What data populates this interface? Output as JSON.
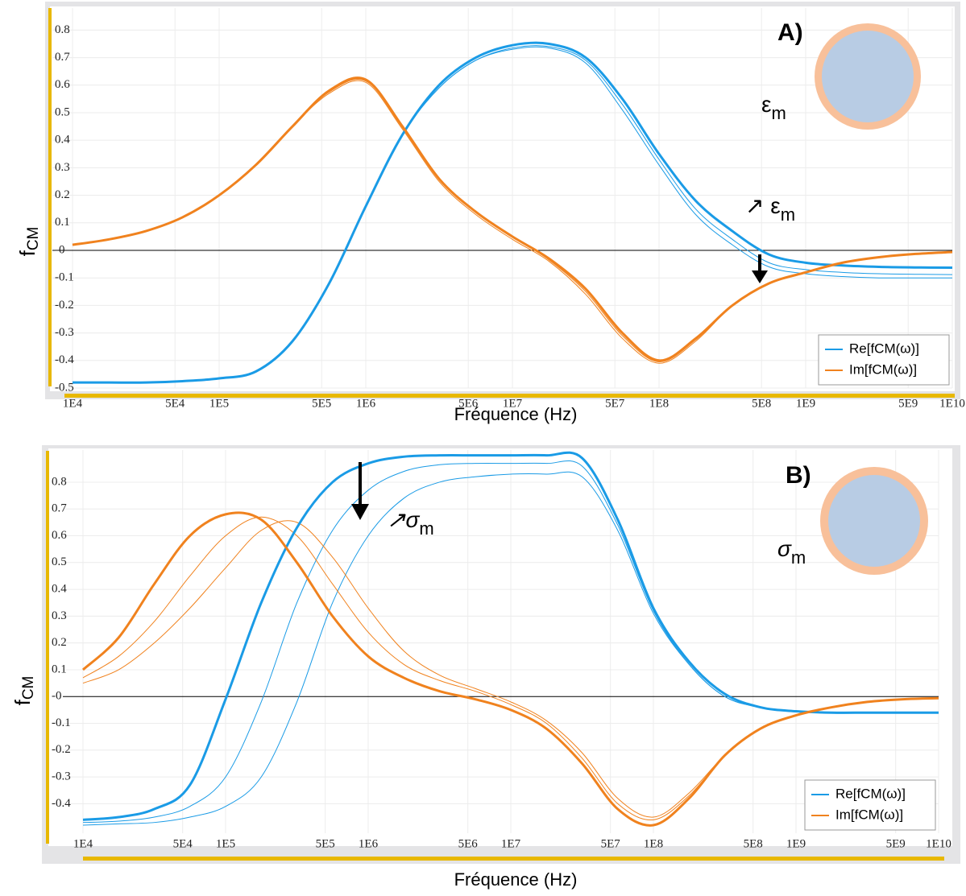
{
  "chart_data": [
    {
      "type": "line",
      "log_x": true,
      "grid": true,
      "legend": "lower right",
      "ylabel": {
        "text": "f",
        "sub": "CM"
      },
      "xlabel": "Fréquence (Hz)",
      "annotations": [
        {
          "text": "A)"
        },
        {
          "text": "ε",
          "sub": "m"
        },
        {
          "text": "↗ ε",
          "sub": "m"
        }
      ],
      "xlim": [
        10000,
        10000000000
      ],
      "ylim": [
        -0.5,
        0.88
      ],
      "xticks": [
        {
          "value": 10000,
          "label": "1E4"
        },
        {
          "value": 50000,
          "label": "5E4"
        },
        {
          "value": 100000,
          "label": "1E5"
        },
        {
          "value": 500000,
          "label": "5E5"
        },
        {
          "value": 1000000,
          "label": "1E6"
        },
        {
          "value": 5000000,
          "label": "5E6"
        },
        {
          "value": 10000000,
          "label": "1E7"
        },
        {
          "value": 50000000,
          "label": "5E7"
        },
        {
          "value": 100000000,
          "label": "1E8"
        },
        {
          "value": 500000000,
          "label": "5E8"
        },
        {
          "value": 1000000000,
          "label": "1E9"
        },
        {
          "value": 5000000000,
          "label": "5E9"
        },
        {
          "value": 10000000000,
          "label": "1E10"
        }
      ],
      "yticks": [
        -0.5,
        -0.4,
        -0.3,
        -0.2,
        -0.1,
        {
          "value": 0,
          "label": "-0"
        },
        0.1,
        0.2,
        0.3,
        0.4,
        0.5,
        0.6,
        0.7,
        0.8
      ],
      "x": [
        10000,
        17783,
        31623,
        56234,
        100000,
        177828,
        316228,
        562341,
        1000000,
        1778279,
        3162278,
        5623413,
        10000000,
        17782794,
        31622777,
        56234133,
        100000000,
        177827941,
        316227766,
        562341325,
        1000000000,
        1778279410,
        3162277660,
        5623413252,
        10000000000
      ],
      "series": [
        {
          "name": "Re[fCM(ω)]",
          "color": "#1a9be6",
          "width": 3,
          "values": [
            -0.48,
            -0.48,
            -0.48,
            -0.475,
            -0.465,
            -0.44,
            -0.33,
            -0.12,
            0.16,
            0.42,
            0.6,
            0.7,
            0.745,
            0.75,
            0.7,
            0.55,
            0.35,
            0.18,
            0.07,
            -0.015,
            -0.045,
            -0.055,
            -0.06,
            -0.062,
            -0.063
          ]
        },
        {
          "color": "#1a9be6",
          "width": 1,
          "values": [
            -0.48,
            -0.48,
            -0.48,
            -0.475,
            -0.465,
            -0.44,
            -0.33,
            -0.12,
            0.16,
            0.42,
            0.59,
            0.69,
            0.735,
            0.74,
            0.69,
            0.53,
            0.33,
            0.15,
            0.04,
            -0.045,
            -0.07,
            -0.08,
            -0.085,
            -0.087,
            -0.088
          ]
        },
        {
          "color": "#1a9be6",
          "width": 1,
          "values": [
            -0.48,
            -0.48,
            -0.48,
            -0.475,
            -0.465,
            -0.44,
            -0.33,
            -0.12,
            0.16,
            0.42,
            0.59,
            0.69,
            0.73,
            0.735,
            0.68,
            0.51,
            0.31,
            0.13,
            0.02,
            -0.06,
            -0.085,
            -0.095,
            -0.1,
            -0.1,
            -0.1
          ]
        },
        {
          "name": "Im[fCM(ω)]",
          "color": "#f0821e",
          "width": 3,
          "values": [
            0.02,
            0.04,
            0.07,
            0.12,
            0.2,
            0.31,
            0.45,
            0.58,
            0.62,
            0.45,
            0.26,
            0.14,
            0.05,
            -0.03,
            -0.14,
            -0.3,
            -0.4,
            -0.32,
            -0.2,
            -0.12,
            -0.08,
            -0.045,
            -0.025,
            -0.013,
            -0.006
          ]
        },
        {
          "color": "#f0821e",
          "width": 1,
          "values": [
            0.02,
            0.04,
            0.07,
            0.12,
            0.2,
            0.31,
            0.45,
            0.575,
            0.615,
            0.45,
            0.26,
            0.14,
            0.05,
            -0.035,
            -0.15,
            -0.31,
            -0.405,
            -0.325,
            -0.2,
            -0.12,
            -0.08,
            -0.045,
            -0.025,
            -0.013,
            -0.006
          ]
        },
        {
          "color": "#f0821e",
          "width": 1,
          "values": [
            0.02,
            0.04,
            0.07,
            0.12,
            0.2,
            0.31,
            0.45,
            0.57,
            0.61,
            0.44,
            0.25,
            0.13,
            0.04,
            -0.04,
            -0.16,
            -0.32,
            -0.41,
            -0.33,
            -0.2,
            -0.12,
            -0.08,
            -0.045,
            -0.025,
            -0.013,
            -0.006
          ]
        }
      ]
    },
    {
      "type": "line",
      "log_x": true,
      "grid": true,
      "legend": "lower right",
      "ylabel": {
        "text": "f",
        "sub": "CM"
      },
      "xlabel": "Fréquence (Hz)",
      "annotations": [
        {
          "text": "B)"
        },
        {
          "text": "σ",
          "sub": "m"
        },
        {
          "text": "↗σ",
          "sub": "m"
        }
      ],
      "xlim": [
        10000,
        10000000000
      ],
      "ylim": [
        -0.51,
        0.92
      ],
      "xticks": [
        {
          "value": 10000,
          "label": "1E4"
        },
        {
          "value": 50000,
          "label": "5E4"
        },
        {
          "value": 100000,
          "label": "1E5"
        },
        {
          "value": 500000,
          "label": "5E5"
        },
        {
          "value": 1000000,
          "label": "1E6"
        },
        {
          "value": 5000000,
          "label": "5E6"
        },
        {
          "value": 10000000,
          "label": "1E7"
        },
        {
          "value": 50000000,
          "label": "5E7"
        },
        {
          "value": 100000000,
          "label": "1E8"
        },
        {
          "value": 500000000,
          "label": "5E8"
        },
        {
          "value": 1000000000,
          "label": "1E9"
        },
        {
          "value": 5000000000,
          "label": "5E9"
        },
        {
          "value": 10000000000,
          "label": "1E10"
        }
      ],
      "yticks": [
        -0.4,
        -0.3,
        -0.2,
        -0.1,
        {
          "value": 0,
          "label": "-0"
        },
        0.1,
        0.2,
        0.3,
        0.4,
        0.5,
        0.6,
        0.7,
        0.8
      ],
      "x": [
        10000,
        17783,
        31623,
        56234,
        100000,
        177828,
        316228,
        562341,
        1000000,
        1778279,
        3162278,
        5623413,
        10000000,
        17782794,
        31622777,
        56234133,
        100000000,
        177827941,
        316227766,
        562341325,
        1000000000,
        1778279410,
        3162277660,
        5623413252,
        10000000000
      ],
      "series": [
        {
          "name": "Re[fCM(ω)]",
          "color": "#1a9be6",
          "width": 3,
          "values": [
            -0.46,
            -0.45,
            -0.42,
            -0.33,
            -0.01,
            0.35,
            0.63,
            0.8,
            0.87,
            0.895,
            0.9,
            0.9,
            0.9,
            0.9,
            0.89,
            0.66,
            0.33,
            0.13,
            0.01,
            -0.04,
            -0.055,
            -0.06,
            -0.06,
            -0.06,
            -0.06
          ]
        },
        {
          "color": "#1a9be6",
          "width": 1,
          "values": [
            -0.47,
            -0.465,
            -0.45,
            -0.41,
            -0.3,
            -0.02,
            0.35,
            0.62,
            0.77,
            0.84,
            0.865,
            0.87,
            0.87,
            0.87,
            0.86,
            0.64,
            0.32,
            0.12,
            0.0,
            -0.04,
            -0.055,
            -0.06,
            -0.06,
            -0.06,
            -0.06
          ]
        },
        {
          "color": "#1a9be6",
          "width": 1,
          "values": [
            -0.48,
            -0.475,
            -0.47,
            -0.45,
            -0.41,
            -0.3,
            -0.02,
            0.35,
            0.6,
            0.74,
            0.8,
            0.82,
            0.83,
            0.83,
            0.82,
            0.62,
            0.31,
            0.12,
            0.0,
            -0.04,
            -0.055,
            -0.06,
            -0.06,
            -0.06,
            -0.06
          ]
        },
        {
          "name": "Im[fCM(ω)]",
          "color": "#f0821e",
          "width": 3,
          "values": [
            0.1,
            0.22,
            0.42,
            0.6,
            0.68,
            0.66,
            0.5,
            0.3,
            0.15,
            0.07,
            0.02,
            -0.01,
            -0.05,
            -0.12,
            -0.25,
            -0.42,
            -0.48,
            -0.38,
            -0.22,
            -0.12,
            -0.07,
            -0.04,
            -0.02,
            -0.01,
            -0.006
          ]
        },
        {
          "color": "#f0821e",
          "width": 1,
          "values": [
            0.07,
            0.15,
            0.28,
            0.45,
            0.6,
            0.67,
            0.6,
            0.42,
            0.24,
            0.12,
            0.06,
            0.02,
            -0.03,
            -0.1,
            -0.23,
            -0.4,
            -0.46,
            -0.37,
            -0.22,
            -0.12,
            -0.07,
            -0.04,
            -0.02,
            -0.01,
            -0.006
          ]
        },
        {
          "color": "#f0821e",
          "width": 1,
          "values": [
            0.05,
            0.1,
            0.2,
            0.33,
            0.48,
            0.62,
            0.65,
            0.52,
            0.33,
            0.17,
            0.08,
            0.03,
            -0.02,
            -0.09,
            -0.21,
            -0.38,
            -0.45,
            -0.36,
            -0.22,
            -0.12,
            -0.07,
            -0.04,
            -0.02,
            -0.01,
            -0.006
          ]
        }
      ]
    }
  ]
}
